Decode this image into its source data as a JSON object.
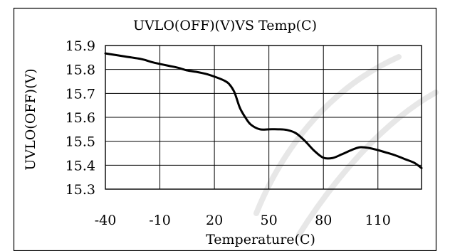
{
  "chart_data": {
    "type": "line",
    "title": "UVLO(OFF)(V)VS Temp(C)",
    "xlabel": "Temperature(C)",
    "ylabel": "UVLO(OFF)(V)",
    "xlim": [
      -40,
      134
    ],
    "ylim": [
      15.3,
      15.9
    ],
    "x_ticks": [
      -40,
      -10,
      20,
      50,
      80,
      110
    ],
    "x_tick_labels": [
      "-40",
      "-10",
      "20",
      "50",
      "80",
      "110"
    ],
    "y_ticks": [
      15.3,
      15.4,
      15.5,
      15.6,
      15.7,
      15.8,
      15.9
    ],
    "y_tick_labels": [
      "15.3",
      "15.4",
      "15.5",
      "15.6",
      "15.7",
      "15.8",
      "15.9"
    ],
    "grid": true,
    "legend": "none",
    "series": [
      {
        "color": "#000000",
        "x": [
          -40,
          -30,
          -20,
          -15,
          -10,
          -5,
          0,
          5,
          10,
          15,
          20,
          25,
          28,
          31,
          34,
          37,
          40,
          45,
          50,
          55,
          60,
          65,
          70,
          75,
          80,
          85,
          90,
          95,
          100,
          105,
          110,
          115,
          120,
          125,
          130,
          134
        ],
        "y": [
          15.867,
          15.855,
          15.843,
          15.832,
          15.823,
          15.815,
          15.807,
          15.796,
          15.79,
          15.782,
          15.77,
          15.755,
          15.74,
          15.705,
          15.64,
          15.6,
          15.57,
          15.55,
          15.55,
          15.55,
          15.547,
          15.533,
          15.5,
          15.46,
          15.431,
          15.43,
          15.445,
          15.462,
          15.475,
          15.472,
          15.463,
          15.452,
          15.44,
          15.425,
          15.41,
          15.388
        ]
      }
    ]
  },
  "colors": {
    "line": "#000000",
    "grid": "#000000",
    "background": "#ffffff"
  }
}
